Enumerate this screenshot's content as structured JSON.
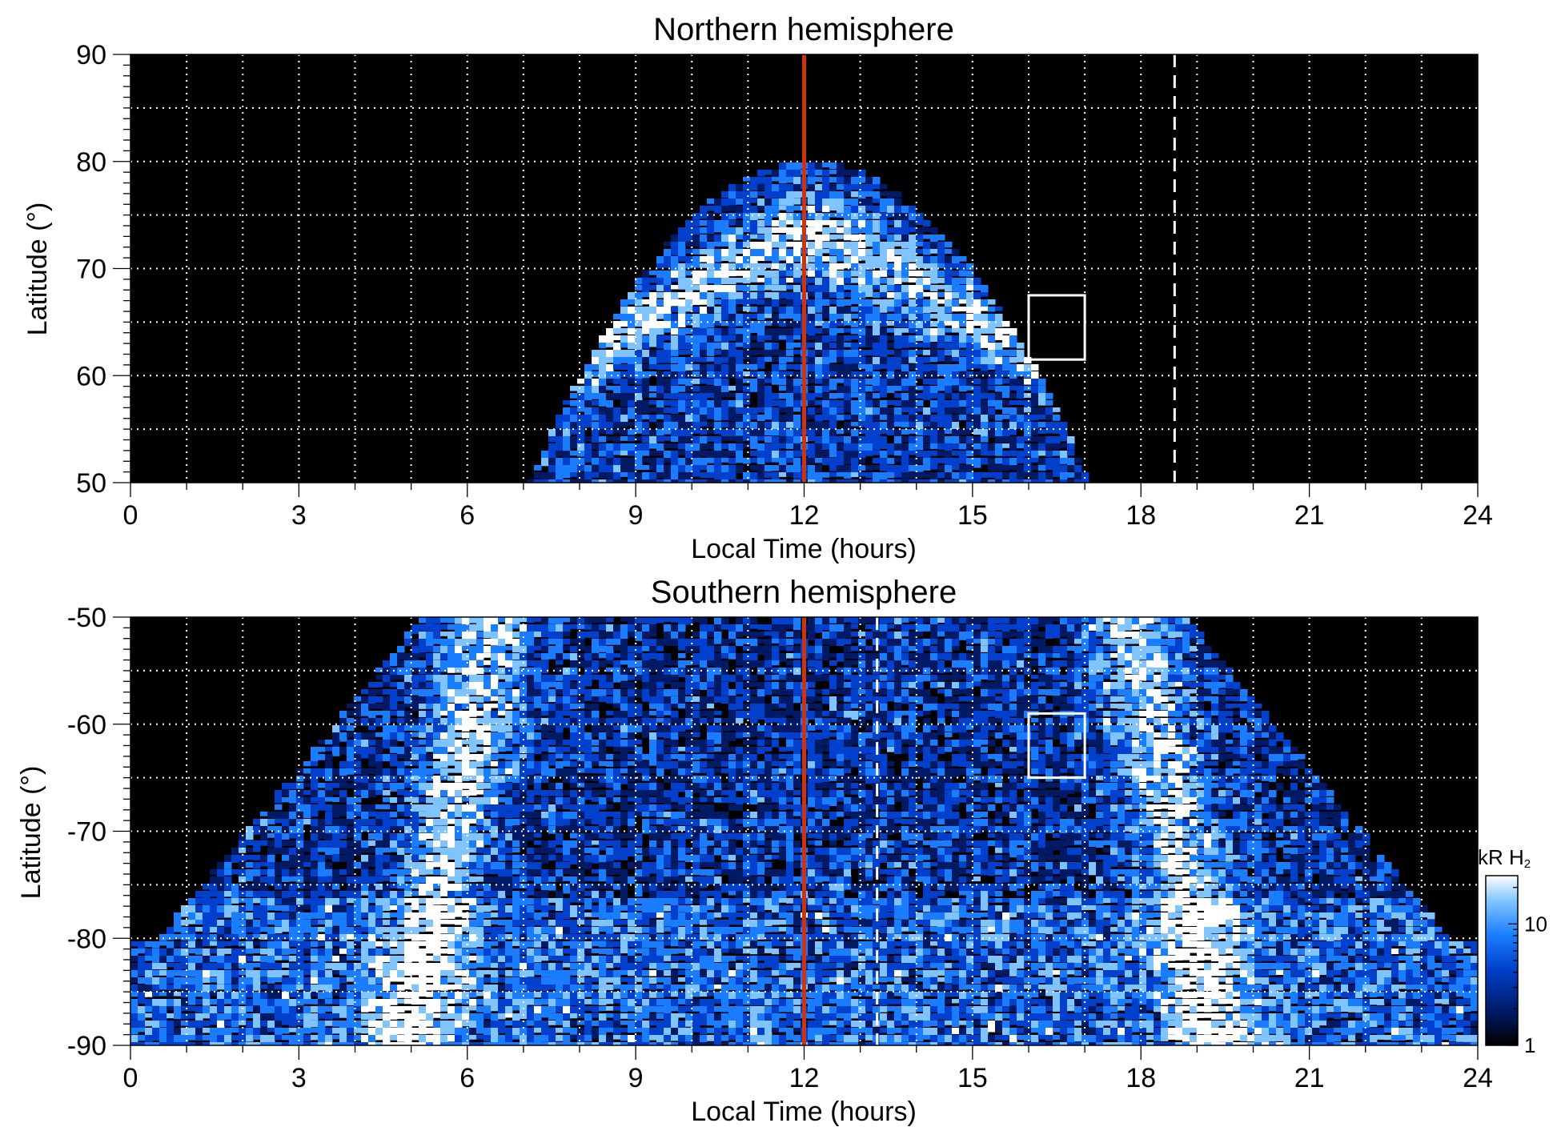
{
  "chart_data": [
    {
      "type": "heatmap",
      "title": "Northern hemisphere",
      "xlabel": "Local Time (hours)",
      "ylabel": "Latitude (°)",
      "xlim": [
        0,
        24
      ],
      "ylim": [
        50,
        90
      ],
      "xticks": [
        "0",
        "3",
        "6",
        "9",
        "12",
        "15",
        "18",
        "21",
        "24"
      ],
      "yticks": [
        "50",
        "60",
        "70",
        "80",
        "90"
      ],
      "grid": true,
      "coverage": {
        "center_lt": 12.1,
        "lt_halfwidth_at_50": 5.0,
        "max_lat": 80
      },
      "oval_band": {
        "lat_at_noon": 73,
        "lat_at_edges": 62
      },
      "noon_line": {
        "lt": 12,
        "color": "#cc3311"
      },
      "dashed_line": {
        "lt": 18.6,
        "color": "#ffffff"
      },
      "box": {
        "lt": [
          16,
          17
        ],
        "lat": [
          61.5,
          67.5
        ]
      }
    },
    {
      "type": "heatmap",
      "title": "Southern hemisphere",
      "xlabel": "Local Time (hours)",
      "ylabel": "Latitude (°)",
      "xlim": [
        0,
        24
      ],
      "ylim": [
        -90,
        -50
      ],
      "xticks": [
        "0",
        "3",
        "6",
        "9",
        "12",
        "15",
        "18",
        "21",
        "24"
      ],
      "yticks": [
        "-90",
        "-80",
        "-70",
        "-60",
        "-50"
      ],
      "grid": true,
      "coverage": {
        "center_lt": 12,
        "lt_halfwidth_at_minus50": 6.8,
        "lt_halfwidth_at_minus80": 11.5
      },
      "oval_band": {
        "lt_dawn": 6.5,
        "lt_dusk": 17.8,
        "lat_range": [
          -80,
          -50
        ]
      },
      "noon_line": {
        "lt": 12,
        "color": "#cc3311"
      },
      "dashed_line": {
        "lt": 13.3,
        "color": "#ffffff"
      },
      "box": {
        "lt": [
          16,
          17
        ],
        "lat": [
          -65,
          -59
        ]
      }
    }
  ],
  "colorbar": {
    "unit_label": "kR H",
    "unit_subscript": "2",
    "scale": "log",
    "range": [
      1,
      25
    ],
    "tick_labels": [
      "1",
      "10"
    ],
    "colors": [
      "#000000",
      "#001a66",
      "#0040cc",
      "#1a7dff",
      "#80c4ff",
      "#ffffff"
    ]
  }
}
